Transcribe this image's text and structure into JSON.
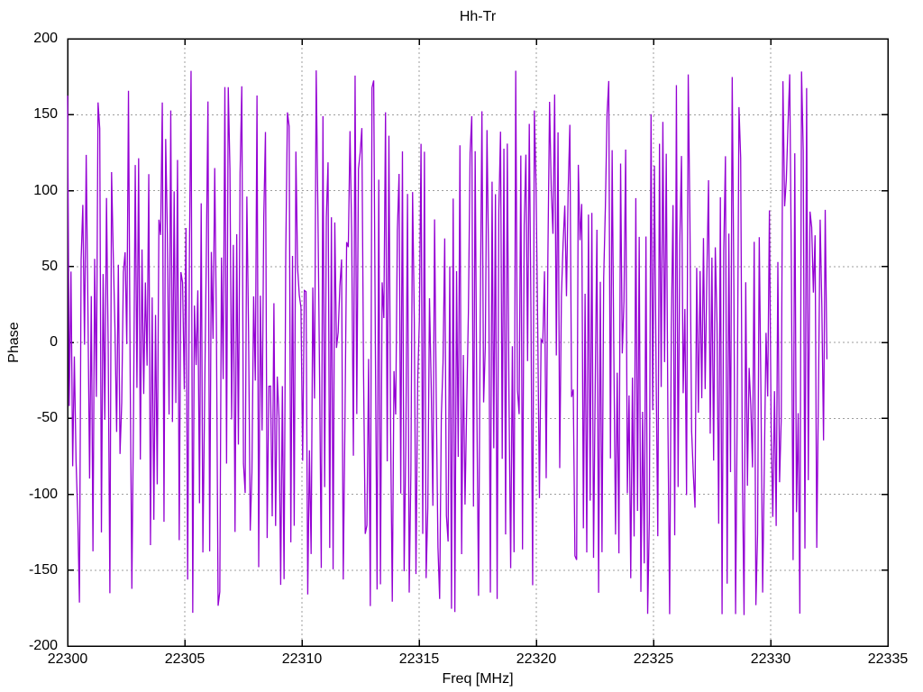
{
  "chart_data": {
    "type": "line",
    "title": "Hh-Tr",
    "xlabel": "Freq [MHz]",
    "ylabel": "Phase",
    "xlim": [
      22300,
      22335
    ],
    "ylim": [
      -200,
      200
    ],
    "xticks": [
      22300,
      22305,
      22310,
      22315,
      22320,
      22325,
      22330,
      22335
    ],
    "yticks": [
      -200,
      -150,
      -100,
      -50,
      0,
      50,
      100,
      150,
      200
    ],
    "grid": {
      "visible": true,
      "style": "dotted",
      "color": "#9e9e9e"
    },
    "legend_position": "none",
    "series": [
      {
        "name": "Hh-Tr",
        "color": "#9400d3",
        "x_start": 22300,
        "x_end": 22332.4,
        "n_points": 450,
        "y_min": -180,
        "y_max": 180,
        "description": "noise-like phase trace wrapping at ±180 degrees, drawn with connecting lines (dense vertical strokes)",
        "synthesis": {
          "model": "wrapped-random-walk",
          "seed": 987654321,
          "max_step_deg": 280
        }
      }
    ]
  },
  "colors": {
    "background": "#ffffff",
    "axis": "#000000",
    "text": "#000000",
    "line": "#9400d3",
    "grid": "#9e9e9e"
  }
}
